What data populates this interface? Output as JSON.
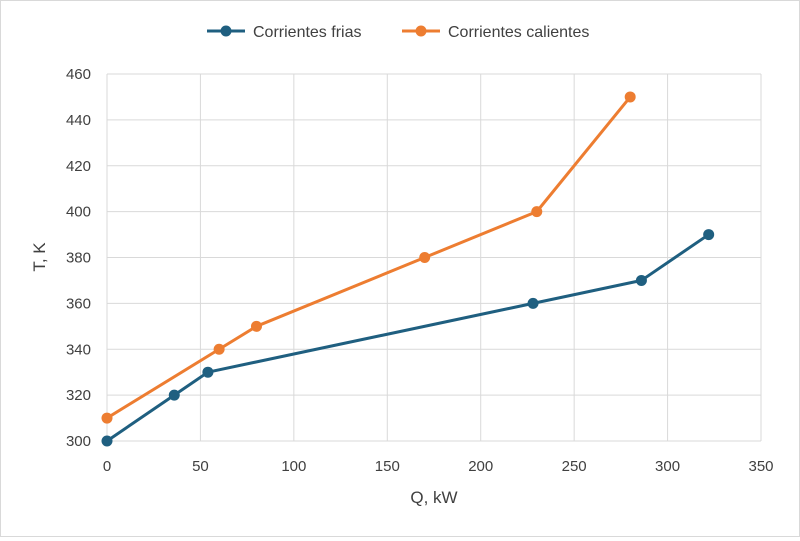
{
  "chart_data": {
    "type": "line",
    "title": "",
    "xlabel": "Q, kW",
    "ylabel": "T, K",
    "xlim": [
      0,
      350
    ],
    "ylim": [
      300,
      460
    ],
    "x_ticks": [
      0,
      50,
      100,
      150,
      200,
      250,
      300,
      350
    ],
    "y_ticks": [
      300,
      320,
      340,
      360,
      380,
      400,
      420,
      440,
      460
    ],
    "grid": true,
    "legend_position": "top",
    "series": [
      {
        "name": "Corrientes frias",
        "color": "#1f5f80",
        "points": [
          {
            "x": 0,
            "y": 300
          },
          {
            "x": 36,
            "y": 320
          },
          {
            "x": 54,
            "y": 330
          },
          {
            "x": 228,
            "y": 360
          },
          {
            "x": 286,
            "y": 370
          },
          {
            "x": 322,
            "y": 390
          }
        ]
      },
      {
        "name": "Corrientes calientes",
        "color": "#ed7d31",
        "points": [
          {
            "x": 0,
            "y": 310
          },
          {
            "x": 60,
            "y": 340
          },
          {
            "x": 80,
            "y": 350
          },
          {
            "x": 170,
            "y": 380
          },
          {
            "x": 230,
            "y": 400
          },
          {
            "x": 280,
            "y": 450
          }
        ]
      }
    ]
  }
}
